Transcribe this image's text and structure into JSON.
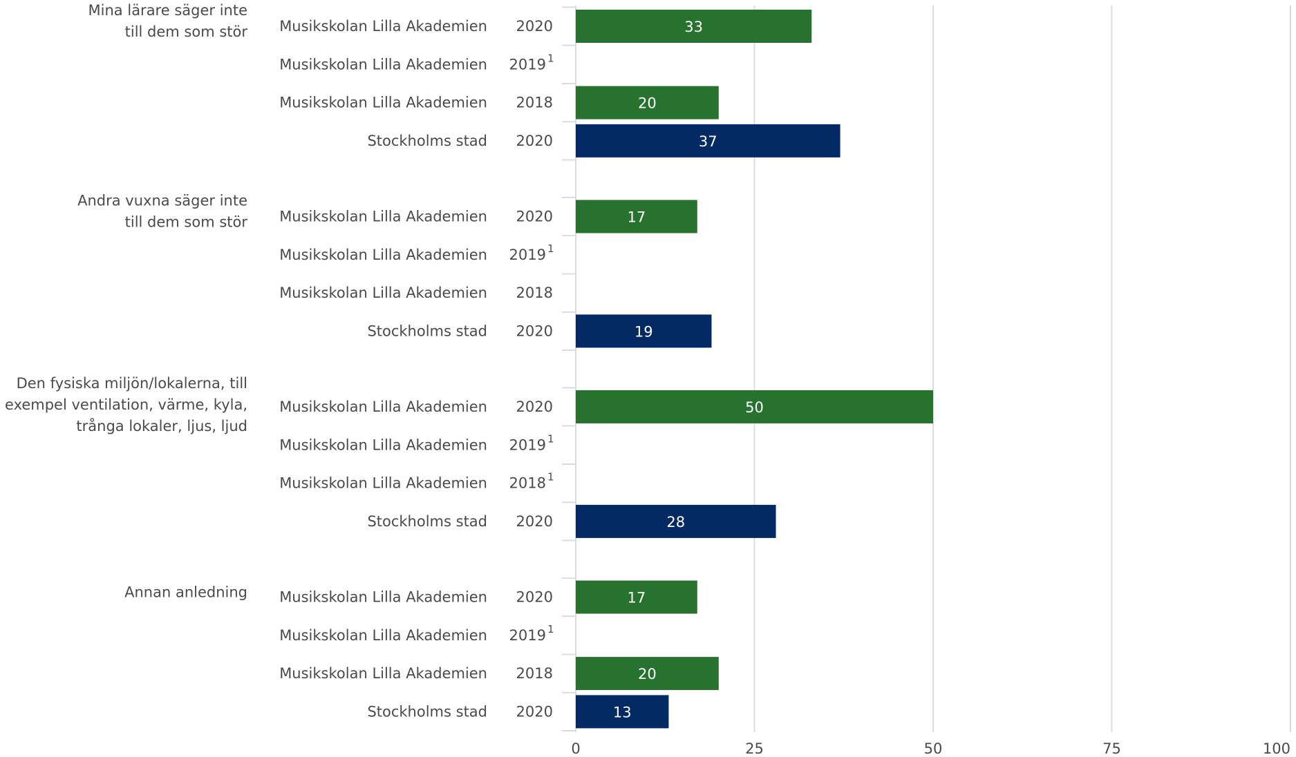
{
  "colors": {
    "school": "#27722f",
    "city": "#032a63",
    "grid": "#d9dde3",
    "text": "#4a4a4a"
  },
  "chart_data": {
    "type": "bar",
    "orientation": "horizontal",
    "xlim": [
      0,
      100
    ],
    "x_ticks": [
      "0",
      "25",
      "50",
      "75",
      "100"
    ],
    "grid": true,
    "groups": [
      {
        "label_lines": [
          "Mina lärare säger inte",
          "till dem som stör"
        ],
        "rows": [
          {
            "entity": "Musikskolan Lilla Akademien",
            "year": "2020",
            "footnote": "",
            "value": 33,
            "value_label": "33",
            "series": "school"
          },
          {
            "entity": "Musikskolan Lilla Akademien",
            "year": "2019",
            "footnote": "1",
            "value": null,
            "value_label": "",
            "series": "school"
          },
          {
            "entity": "Musikskolan Lilla Akademien",
            "year": "2018",
            "footnote": "",
            "value": 20,
            "value_label": "20",
            "series": "school"
          },
          {
            "entity": "Stockholms stad",
            "year": "2020",
            "footnote": "",
            "value": 37,
            "value_label": "37",
            "series": "city"
          }
        ]
      },
      {
        "label_lines": [
          "Andra vuxna säger inte",
          "till dem som stör"
        ],
        "rows": [
          {
            "entity": "Musikskolan Lilla Akademien",
            "year": "2020",
            "footnote": "",
            "value": 17,
            "value_label": "17",
            "series": "school"
          },
          {
            "entity": "Musikskolan Lilla Akademien",
            "year": "2019",
            "footnote": "1",
            "value": null,
            "value_label": "",
            "series": "school"
          },
          {
            "entity": "Musikskolan Lilla Akademien",
            "year": "2018",
            "footnote": "",
            "value": null,
            "value_label": "",
            "series": "school"
          },
          {
            "entity": "Stockholms stad",
            "year": "2020",
            "footnote": "",
            "value": 19,
            "value_label": "19",
            "series": "city"
          }
        ]
      },
      {
        "label_lines": [
          "Den fysiska miljön/lokalerna, till",
          "exempel ventilation, värme, kyla,",
          "trånga lokaler, ljus, ljud"
        ],
        "rows": [
          {
            "entity": "Musikskolan Lilla Akademien",
            "year": "2020",
            "footnote": "",
            "value": 50,
            "value_label": "50",
            "series": "school"
          },
          {
            "entity": "Musikskolan Lilla Akademien",
            "year": "2019",
            "footnote": "1",
            "value": null,
            "value_label": "",
            "series": "school"
          },
          {
            "entity": "Musikskolan Lilla Akademien",
            "year": "2018",
            "footnote": "1",
            "value": null,
            "value_label": "",
            "series": "school"
          },
          {
            "entity": "Stockholms stad",
            "year": "2020",
            "footnote": "",
            "value": 28,
            "value_label": "28",
            "series": "city"
          }
        ]
      },
      {
        "label_lines": [
          "Annan anledning"
        ],
        "rows": [
          {
            "entity": "Musikskolan Lilla Akademien",
            "year": "2020",
            "footnote": "",
            "value": 17,
            "value_label": "17",
            "series": "school"
          },
          {
            "entity": "Musikskolan Lilla Akademien",
            "year": "2019",
            "footnote": "1",
            "value": null,
            "value_label": "",
            "series": "school"
          },
          {
            "entity": "Musikskolan Lilla Akademien",
            "year": "2018",
            "footnote": "",
            "value": 20,
            "value_label": "20",
            "series": "school"
          },
          {
            "entity": "Stockholms stad",
            "year": "2020",
            "footnote": "",
            "value": 13,
            "value_label": "13",
            "series": "city"
          }
        ]
      }
    ]
  }
}
